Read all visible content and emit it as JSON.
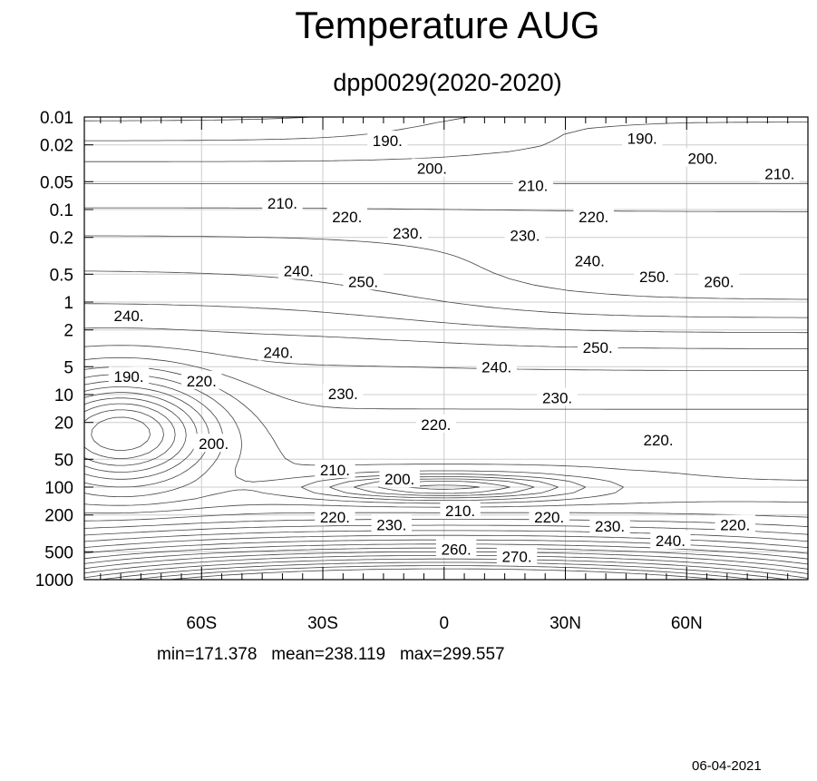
{
  "chart_data": {
    "type": "contour",
    "title": "Temperature AUG",
    "subtitle": "dpp0029(2020-2020)",
    "x_tick_labels": [
      "60S",
      "30S",
      "0",
      "30N",
      "60N"
    ],
    "x_ticks_deg": [
      -60,
      -30,
      0,
      30,
      60
    ],
    "xlim": [
      -89,
      90
    ],
    "y_tick_labels": [
      "0.01",
      "0.02",
      "0.05",
      "0.1",
      "0.2",
      "0.5",
      "1",
      "2",
      "5",
      "10",
      "20",
      "50",
      "100",
      "200",
      "500",
      "1000"
    ],
    "y_ticks": [
      0.01,
      0.02,
      0.05,
      0.1,
      0.2,
      0.5,
      1,
      2,
      5,
      10,
      20,
      50,
      100,
      200,
      500,
      1000
    ],
    "ylim": [
      1000,
      0.01
    ],
    "y_scale": "log",
    "grid": true,
    "contour_interval": 5,
    "contour_labels": [
      {
        "text": "190.",
        "lat": -14,
        "p": 0.018
      },
      {
        "text": "190.",
        "lat": 49,
        "p": 0.017
      },
      {
        "text": "200.",
        "lat": -3,
        "p": 0.036
      },
      {
        "text": "200.",
        "lat": 64,
        "p": 0.028
      },
      {
        "text": "210.",
        "lat": 83,
        "p": 0.041
      },
      {
        "text": "210.",
        "lat": 22,
        "p": 0.055
      },
      {
        "text": "210.",
        "lat": -40,
        "p": 0.085
      },
      {
        "text": "220.",
        "lat": -24,
        "p": 0.12
      },
      {
        "text": "220.",
        "lat": 37,
        "p": 0.12
      },
      {
        "text": "230.",
        "lat": -9,
        "p": 0.18
      },
      {
        "text": "230.",
        "lat": 20,
        "p": 0.19
      },
      {
        "text": "240.",
        "lat": 36,
        "p": 0.36
      },
      {
        "text": "240.",
        "lat": -36,
        "p": 0.46
      },
      {
        "text": "250.",
        "lat": -20,
        "p": 0.6
      },
      {
        "text": "250.",
        "lat": 52,
        "p": 0.53
      },
      {
        "text": "260.",
        "lat": 68,
        "p": 0.6
      },
      {
        "text": "240.",
        "lat": -78,
        "p": 1.4
      },
      {
        "text": "240.",
        "lat": -41,
        "p": 3.5
      },
      {
        "text": "250.",
        "lat": 38,
        "p": 3.1
      },
      {
        "text": "240.",
        "lat": 13,
        "p": 5
      },
      {
        "text": "190.",
        "lat": -78,
        "p": 6.4
      },
      {
        "text": "220.",
        "lat": -60,
        "p": 7.1
      },
      {
        "text": "230.",
        "lat": -25,
        "p": 9.8
      },
      {
        "text": "230.",
        "lat": 28,
        "p": 10.8
      },
      {
        "text": "220.",
        "lat": -2,
        "p": 21
      },
      {
        "text": "220.",
        "lat": 53,
        "p": 31
      },
      {
        "text": "200.",
        "lat": -57,
        "p": 34
      },
      {
        "text": "210.",
        "lat": -27,
        "p": 65
      },
      {
        "text": "200.",
        "lat": -11,
        "p": 82
      },
      {
        "text": "210.",
        "lat": 4,
        "p": 180
      },
      {
        "text": "220.",
        "lat": -27,
        "p": 210
      },
      {
        "text": "220.",
        "lat": 26,
        "p": 210
      },
      {
        "text": "220.",
        "lat": 72,
        "p": 255
      },
      {
        "text": "230.",
        "lat": -13,
        "p": 255
      },
      {
        "text": "230.",
        "lat": 41,
        "p": 265
      },
      {
        "text": "240.",
        "lat": 56,
        "p": 380
      },
      {
        "text": "260.",
        "lat": 3,
        "p": 470
      },
      {
        "text": "270.",
        "lat": 18,
        "p": 560
      }
    ]
  },
  "stats": {
    "text": "min=171.378   mean=238.119   max=299.557",
    "min": 171.378,
    "mean": 238.119,
    "max": 299.557
  },
  "date_stamp": "06-04-2021",
  "colors": {
    "contour": "#444444",
    "grid": "#cccccc",
    "frame": "#000000"
  }
}
